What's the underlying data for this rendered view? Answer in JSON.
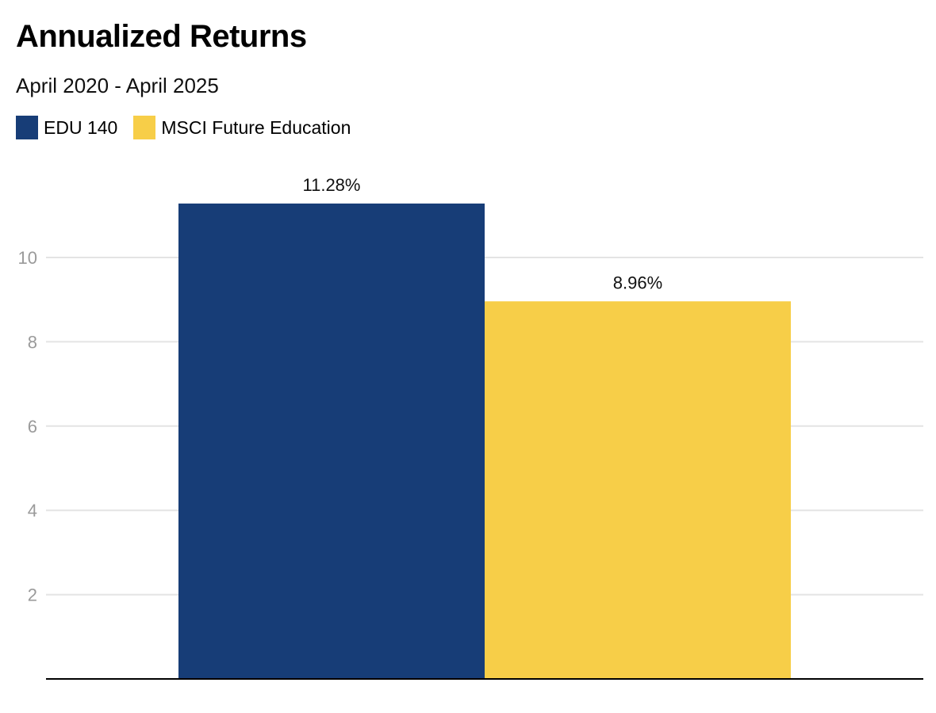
{
  "chart_data": {
    "type": "bar",
    "title": "Annualized Returns",
    "subtitle": "April 2020 - April 2025",
    "series": [
      {
        "name": "EDU 140",
        "value": 11.28,
        "label": "11.28%",
        "color": "#173d77"
      },
      {
        "name": "MSCI Future Education",
        "value": 8.96,
        "label": "8.96%",
        "color": "#f7ce48"
      }
    ],
    "y_ticks": [
      2,
      4,
      6,
      8,
      10
    ],
    "ylim": [
      0,
      12
    ],
    "grid": true,
    "legend_position": "top-left",
    "gridline_color": "#e4e4e4",
    "tick_label_color": "#9a9a9a"
  }
}
